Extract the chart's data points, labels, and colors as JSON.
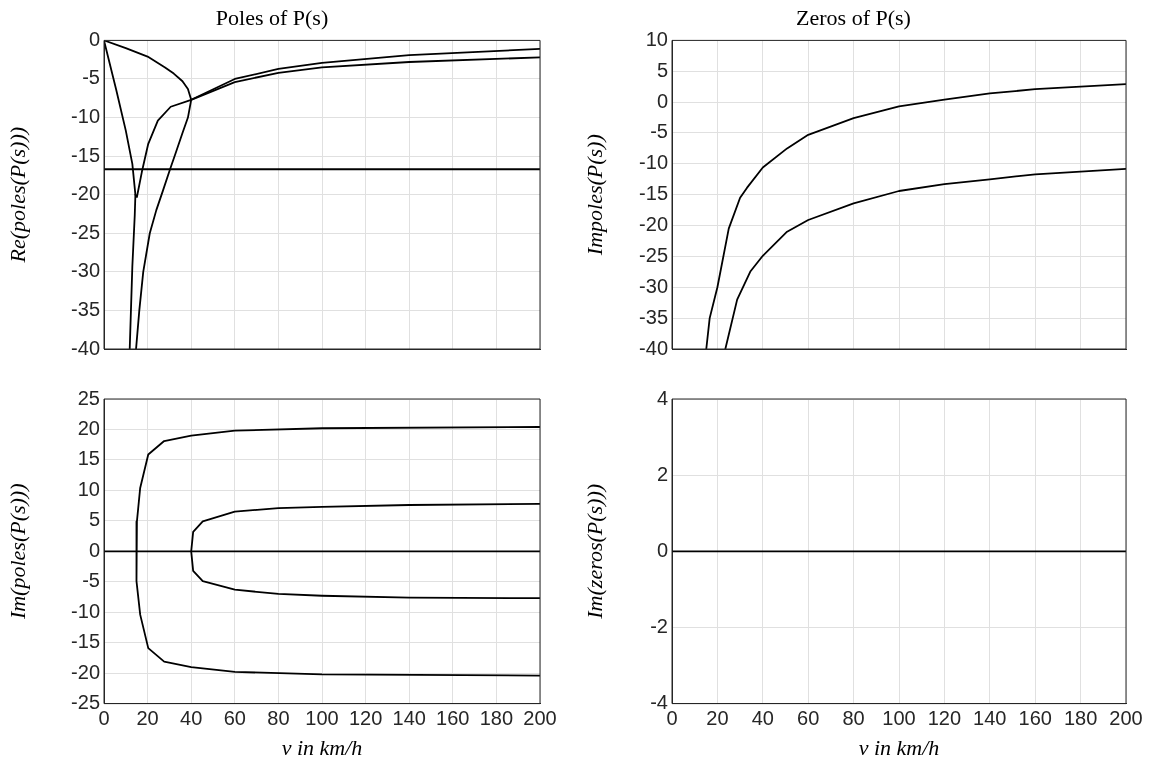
{
  "chart_data": [
    {
      "type": "line",
      "title": "Poles of P(s)",
      "ylabel": "Re(poles(P(s)))",
      "xlim": [
        0,
        200
      ],
      "xticks": [
        0,
        20,
        40,
        60,
        80,
        100,
        120,
        140,
        160,
        180,
        200
      ],
      "ylim": [
        -40,
        0
      ],
      "yticks": [
        -40,
        -35,
        -30,
        -25,
        -20,
        -15,
        -10,
        -5,
        0
      ],
      "grid": true,
      "tick_labels": "y",
      "marker": "none",
      "line_style": "solid",
      "series": [
        {
          "color": "#000000",
          "x": [
            0,
            200
          ],
          "values": [
            -16.7,
            -16.7
          ]
        },
        {
          "color": "#000000",
          "x": [
            0,
            10,
            20,
            28,
            32,
            36,
            38.5,
            40,
            38.5,
            36,
            33,
            30.3,
            27,
            24,
            21,
            18,
            16.2,
            14.7
          ],
          "values": [
            0,
            -1,
            -2.1,
            -3.5,
            -4.3,
            -5.3,
            -6.3,
            -7.7,
            -10,
            -12,
            -14.5,
            -16.7,
            -19.5,
            -22,
            -25,
            -30,
            -35,
            -40
          ]
        },
        {
          "color": "#000000",
          "x": [
            0,
            5.6,
            10,
            13,
            14.4,
            14.1,
            13,
            11.8
          ],
          "values": [
            0,
            -6.4,
            -11.7,
            -16,
            -20,
            -22.7,
            -29.3,
            -40
          ]
        },
        {
          "color": "#000000",
          "x": [
            14.4,
            15.1,
            17.4,
            20.3,
            24.7,
            30.6,
            40,
            60,
            80,
            100,
            140,
            200
          ],
          "values": [
            -20,
            -20.3,
            -17,
            -13.4,
            -10.4,
            -8.6,
            -7.7,
            -5,
            -3.7,
            -2.9,
            -1.9,
            -1.1
          ]
        },
        {
          "color": "#000000",
          "x": [
            40,
            60,
            80,
            100,
            140,
            200
          ],
          "values": [
            -7.7,
            -5.4,
            -4.2,
            -3.5,
            -2.8,
            -2.2
          ]
        }
      ]
    },
    {
      "type": "line",
      "title": "Zeros of P(s)",
      "ylabel": "Impoles(P(s))",
      "xlim": [
        0,
        200
      ],
      "xticks": [
        0,
        20,
        40,
        60,
        80,
        100,
        120,
        140,
        160,
        180,
        200
      ],
      "ylim": [
        -40,
        10
      ],
      "yticks": [
        -40,
        -35,
        -30,
        -25,
        -20,
        -15,
        -10,
        -5,
        0,
        5,
        10
      ],
      "grid": true,
      "tick_labels": "y",
      "marker": "none",
      "line_style": "solid",
      "series": [
        {
          "color": "#000000",
          "x": [
            15.1,
            16.6,
            20,
            25,
            30,
            33,
            40,
            50.7,
            60,
            80,
            100,
            120,
            140,
            160,
            200
          ],
          "values": [
            -40,
            -35,
            -30,
            -20.5,
            -15.5,
            -13.9,
            -10.6,
            -7.5,
            -5.3,
            -2.6,
            -0.7,
            0.4,
            1.4,
            2.1,
            2.9
          ]
        },
        {
          "color": "#000000",
          "x": [
            23.5,
            28.7,
            34.6,
            40,
            50.7,
            60,
            80,
            100,
            120,
            140,
            160,
            200
          ],
          "values": [
            -40,
            -32,
            -27.4,
            -24.9,
            -21,
            -19.1,
            -16.4,
            -14.4,
            -13.3,
            -12.5,
            -11.7,
            -10.8
          ]
        }
      ]
    },
    {
      "type": "line",
      "xlabel": "v in km/h",
      "ylabel": "Im(poles(P(s)))",
      "xlim": [
        0,
        200
      ],
      "xticks": [
        0,
        20,
        40,
        60,
        80,
        100,
        120,
        140,
        160,
        180,
        200
      ],
      "ylim": [
        -25,
        25
      ],
      "yticks": [
        -25,
        -20,
        -15,
        -10,
        -5,
        0,
        5,
        10,
        15,
        20,
        25
      ],
      "grid": true,
      "marker": "none",
      "line_style": "solid",
      "series": [
        {
          "color": "#000000",
          "x": [
            0,
            200
          ],
          "values": [
            0,
            0
          ]
        },
        {
          "color": "#000000",
          "x": [
            200,
            100,
            60,
            40,
            27.6,
            20.3,
            16.6,
            15.1,
            14.7,
            15.1,
            16.6,
            20.3,
            27.6,
            40,
            60,
            100,
            200
          ],
          "values": [
            20.4,
            20.2,
            19.8,
            19,
            18.1,
            15.9,
            10.4,
            4.9,
            0,
            -4.9,
            -10.4,
            -15.9,
            -18.1,
            -19,
            -19.8,
            -20.2,
            -20.4
          ]
        },
        {
          "color": "#000000",
          "x": [
            200,
            140,
            100,
            80,
            60,
            45.3,
            40.9,
            40,
            40.9,
            45.3,
            60,
            80,
            100,
            140,
            200
          ],
          "values": [
            7.8,
            7.6,
            7.3,
            7.1,
            6.5,
            4.9,
            3.2,
            0,
            -3.2,
            -4.9,
            -6.3,
            -7,
            -7.3,
            -7.6,
            -7.7
          ]
        }
      ]
    },
    {
      "type": "line",
      "xlabel": "v in km/h",
      "ylabel": "Im(zeros(P(s)))",
      "xlim": [
        0,
        200
      ],
      "xticks": [
        0,
        20,
        40,
        60,
        80,
        100,
        120,
        140,
        160,
        180,
        200
      ],
      "ylim": [
        -4,
        4
      ],
      "yticks": [
        -4,
        -2,
        0,
        2,
        4
      ],
      "grid": true,
      "marker": "none",
      "line_style": "solid",
      "series": [
        {
          "color": "#000000",
          "x": [
            0,
            200
          ],
          "values": [
            0,
            0
          ]
        }
      ]
    }
  ]
}
